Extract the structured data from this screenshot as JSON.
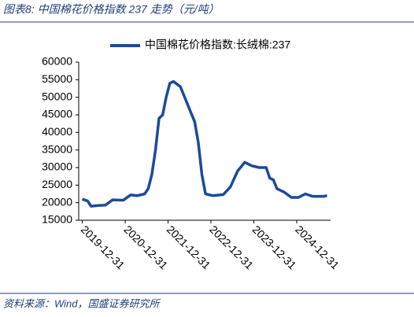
{
  "chart_data": {
    "type": "line",
    "title": "图表8:  中国棉花价格指数 237 走势（元/吨）",
    "source": "资料来源：Wind，国盛证券研究所",
    "x": [
      "2019-12-31",
      "2020-02-15",
      "2020-03-15",
      "2020-05-15",
      "2020-07-15",
      "2020-09-15",
      "2020-12-15",
      "2021-02-15",
      "2021-04-15",
      "2021-06-15",
      "2021-07-15",
      "2021-08-15",
      "2021-09-15",
      "2021-10-15",
      "2021-11-15",
      "2021-12-15",
      "2022-01-15",
      "2022-02-15",
      "2022-04-15",
      "2022-06-15",
      "2022-08-15",
      "2022-09-15",
      "2022-10-15",
      "2022-11-15",
      "2023-01-15",
      "2023-04-15",
      "2023-06-15",
      "2023-08-15",
      "2023-10-15",
      "2023-12-15",
      "2024-02-15",
      "2024-04-15",
      "2024-05-15",
      "2024-06-15",
      "2024-07-15",
      "2024-09-15",
      "2024-11-15",
      "2025-01-15",
      "2025-03-15",
      "2025-05-15",
      "2025-08-15",
      "2025-09-15"
    ],
    "series": [
      {
        "name": "中国棉花价格指数:长绒棉:237",
        "color": "#1b4b9b",
        "values": [
          21000,
          20500,
          19000,
          19200,
          19300,
          20800,
          20700,
          22200,
          22000,
          22500,
          24000,
          28000,
          35000,
          44000,
          45000,
          50000,
          54000,
          54500,
          53000,
          48000,
          43000,
          37000,
          28000,
          22500,
          22000,
          22300,
          24500,
          29000,
          31500,
          30500,
          30000,
          30000,
          27000,
          26500,
          24000,
          23000,
          21500,
          21500,
          22500,
          21800,
          21800,
          22000
        ]
      }
    ],
    "xlim": [
      "2019-12-01",
      "2025-10-15"
    ],
    "xticks": [
      "2019-12-31",
      "2020-12-31",
      "2021-12-31",
      "2022-12-31",
      "2023-12-31",
      "2024-12-31"
    ],
    "ylim": [
      15000,
      60000
    ],
    "yticks": [
      15000,
      20000,
      25000,
      30000,
      35000,
      40000,
      45000,
      50000,
      55000,
      60000
    ],
    "legend": "top"
  }
}
